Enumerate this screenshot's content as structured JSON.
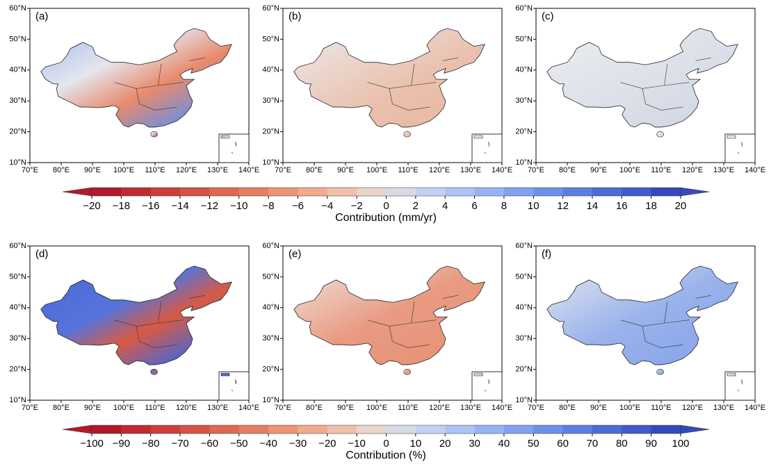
{
  "panels": [
    {
      "label": "(a)"
    },
    {
      "label": "(b)"
    },
    {
      "label": "(c)"
    },
    {
      "label": "(d)"
    },
    {
      "label": "(e)"
    },
    {
      "label": "(f)"
    }
  ],
  "lat_ticks": [
    "60°N",
    "50°N",
    "40°N",
    "30°N",
    "20°N",
    "10°N"
  ],
  "lon_ticks": [
    "70°E",
    "80°E",
    "90°E",
    "100°E",
    "110°E",
    "120°E",
    "130°E",
    "140°E"
  ],
  "colorbars": [
    {
      "ticks": [
        "−20",
        "−18",
        "−16",
        "−14",
        "−12",
        "−10",
        "−8",
        "−6",
        "−4",
        "−2",
        "0",
        "2",
        "4",
        "6",
        "8",
        "10",
        "12",
        "14",
        "16",
        "18",
        "20"
      ],
      "title": "Contribution (mm/yr)"
    },
    {
      "ticks": [
        "−100",
        "−90",
        "−80",
        "−70",
        "−60",
        "−50",
        "−40",
        "−30",
        "−20",
        "−10",
        "0",
        "10",
        "20",
        "30",
        "40",
        "50",
        "60",
        "70",
        "80",
        "90",
        "100"
      ],
      "title": "Contribution (%)"
    }
  ]
}
